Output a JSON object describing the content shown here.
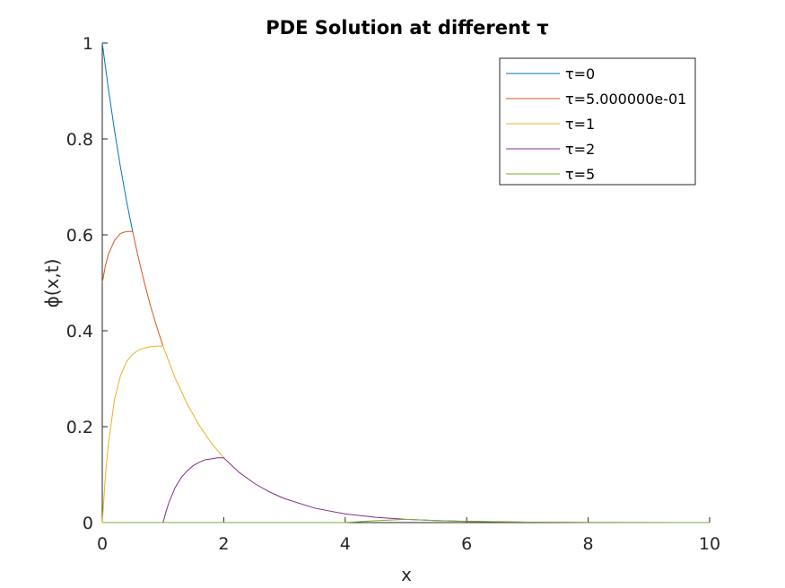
{
  "chart_data": {
    "type": "line",
    "title": "PDE Solution at different τ",
    "xlabel": "x",
    "ylabel": "ϕ(x,t)",
    "xlim": [
      0,
      10
    ],
    "ylim": [
      0,
      1
    ],
    "xticks": [
      "0",
      "2",
      "4",
      "6",
      "8",
      "10"
    ],
    "yticks": [
      "0",
      "0.2",
      "0.4",
      "0.6",
      "0.8",
      "1"
    ],
    "legend_position": "top-right",
    "grid": false,
    "series": [
      {
        "name": "τ=0",
        "color": "#0072BD",
        "x": [
          0,
          0.1,
          0.2,
          0.3,
          0.4,
          0.5
        ],
        "y": [
          1.0,
          0.905,
          0.819,
          0.741,
          0.67,
          0.607
        ]
      },
      {
        "name": "τ=5.000000e-01",
        "color": "#D95319",
        "x": [
          0,
          0.05,
          0.1,
          0.2,
          0.3,
          0.4,
          0.5,
          0.6,
          0.7,
          0.8,
          0.9,
          1.0
        ],
        "y": [
          0.5,
          0.535,
          0.559,
          0.588,
          0.603,
          0.607,
          0.607,
          0.549,
          0.497,
          0.449,
          0.407,
          0.368
        ]
      },
      {
        "name": "τ=1",
        "color": "#EDB120",
        "x": [
          0,
          0.05,
          0.1,
          0.2,
          0.3,
          0.4,
          0.5,
          0.6,
          0.7,
          0.8,
          0.9,
          1.0,
          1.2,
          1.4,
          1.6,
          1.8,
          2.0
        ],
        "y": [
          0,
          0.095,
          0.163,
          0.256,
          0.306,
          0.336,
          0.351,
          0.36,
          0.364,
          0.367,
          0.368,
          0.368,
          0.301,
          0.247,
          0.202,
          0.165,
          0.135
        ]
      },
      {
        "name": "τ=2",
        "color": "#7E2F8E",
        "x": [
          0,
          1.0,
          1.05,
          1.1,
          1.2,
          1.3,
          1.4,
          1.5,
          1.6,
          1.7,
          1.8,
          1.9,
          2.0,
          2.25,
          2.5,
          2.75,
          3.0,
          3.5,
          4.0,
          4.5,
          5.0,
          5.5,
          6.0,
          7.0,
          8.0,
          10.0
        ],
        "y": [
          0,
          0,
          0.023,
          0.043,
          0.073,
          0.094,
          0.108,
          0.119,
          0.126,
          0.131,
          0.133,
          0.135,
          0.135,
          0.105,
          0.082,
          0.064,
          0.05,
          0.03,
          0.018,
          0.011,
          0.0067,
          0.0041,
          0.0025,
          0.0009,
          0.0003,
          0
        ]
      },
      {
        "name": "τ=5",
        "color": "#77AC30",
        "x": [
          0,
          4.0,
          4.5,
          5.0,
          5.5,
          6.0,
          7.0,
          8.0,
          10.0
        ],
        "y": [
          0,
          0,
          0.004,
          0.0067,
          0.0041,
          0.0025,
          0.0009,
          0.0003,
          0
        ]
      }
    ]
  }
}
